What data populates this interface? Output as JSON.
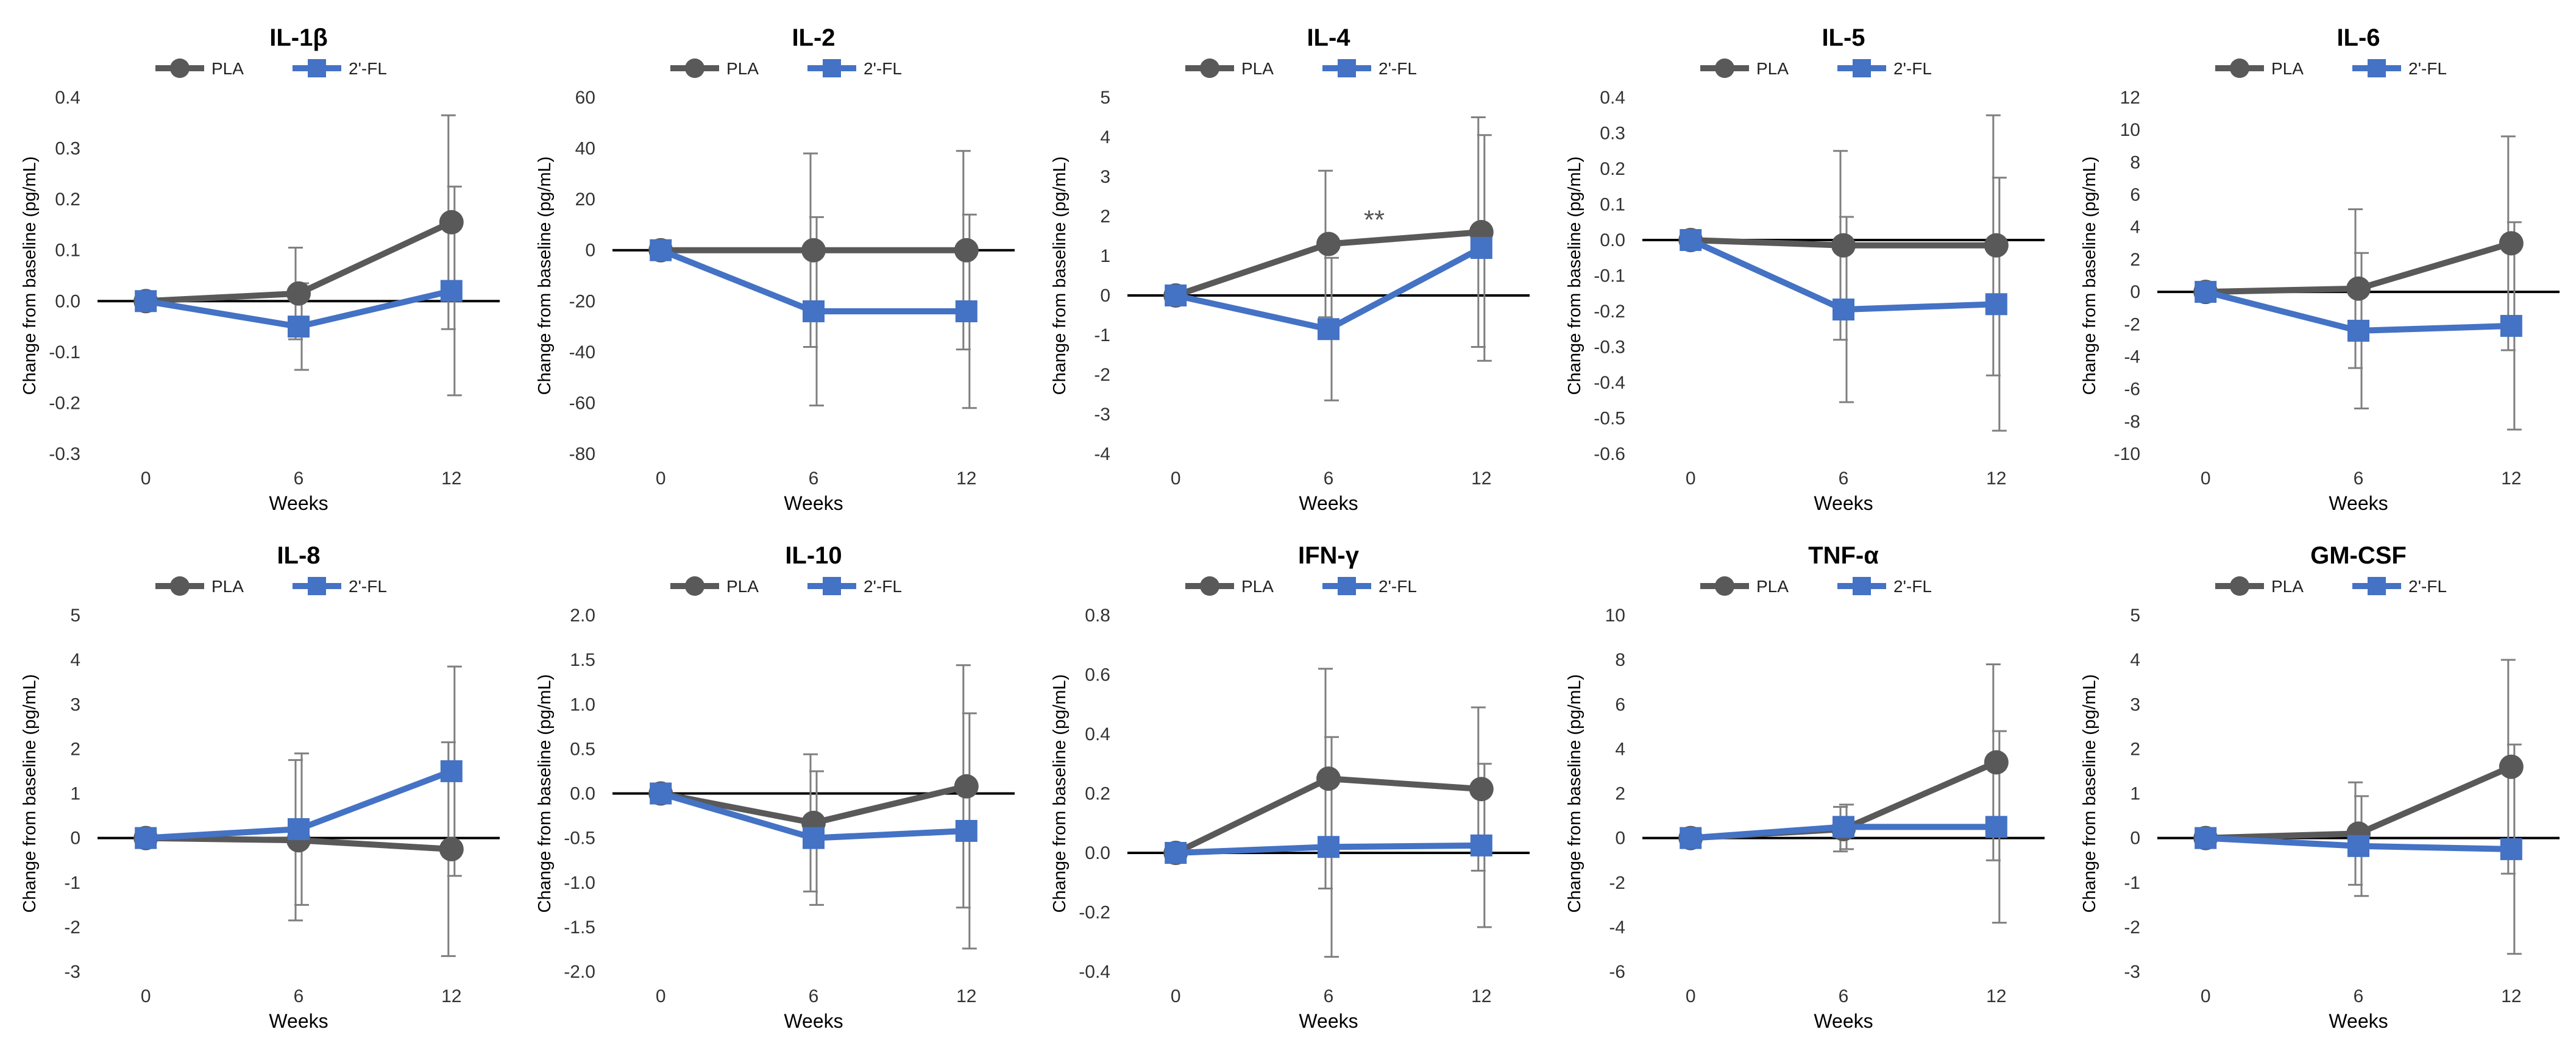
{
  "figure": {
    "xlabel": "Weeks",
    "ylabel": "Change from baseline (pg/mL)"
  },
  "legend": {
    "pla": "PLA",
    "fl": "2'-FL"
  },
  "colors": {
    "pla": "#595959",
    "fl": "#4472C4",
    "err": "#7f7f7f",
    "zero": "#000000"
  },
  "chart_data": [
    {
      "type": "line",
      "title": "IL-1β",
      "categories": [
        "0",
        "6",
        "12"
      ],
      "ylim": [
        -0.3,
        0.4
      ],
      "yticks": [
        "0.4",
        "0.3",
        "0.2",
        "0.1",
        "0.0",
        "-0.1",
        "-0.2",
        "-0.3"
      ],
      "series": [
        {
          "name": "PLA",
          "values": [
            0.0,
            0.015,
            0.155
          ],
          "err": [
            0.0,
            0.09,
            0.21
          ]
        },
        {
          "name": "2'-FL",
          "values": [
            0.0,
            -0.05,
            0.02
          ],
          "err": [
            0.0,
            0.085,
            0.205
          ]
        }
      ],
      "annotations": []
    },
    {
      "type": "line",
      "title": "IL-2",
      "categories": [
        "0",
        "6",
        "12"
      ],
      "ylim": [
        -80,
        60
      ],
      "yticks": [
        "60",
        "40",
        "20",
        "0",
        "-20",
        "-40",
        "-60",
        "-80"
      ],
      "series": [
        {
          "name": "PLA",
          "values": [
            0,
            0,
            0
          ],
          "err": [
            0,
            38,
            39
          ]
        },
        {
          "name": "2'-FL",
          "values": [
            0,
            -24,
            -24
          ],
          "err": [
            0,
            37,
            38
          ]
        }
      ],
      "annotations": []
    },
    {
      "type": "line",
      "title": "IL-4",
      "categories": [
        "0",
        "6",
        "12"
      ],
      "ylim": [
        -4,
        5
      ],
      "yticks": [
        "5",
        "4",
        "3",
        "2",
        "1",
        "0",
        "-1",
        "-2",
        "-3",
        "-4"
      ],
      "series": [
        {
          "name": "PLA",
          "values": [
            0,
            1.3,
            1.6
          ],
          "err": [
            0,
            1.85,
            2.9
          ]
        },
        {
          "name": "2'-FL",
          "values": [
            0,
            -0.85,
            1.2
          ],
          "err": [
            0,
            1.8,
            2.85
          ]
        }
      ],
      "annotations": [
        {
          "x": "6",
          "text": "**"
        }
      ]
    },
    {
      "type": "line",
      "title": "IL-5",
      "categories": [
        "0",
        "6",
        "12"
      ],
      "ylim": [
        -0.6,
        0.4
      ],
      "yticks": [
        "0.4",
        "0.3",
        "0.2",
        "0.1",
        "0.0",
        "-0.1",
        "-0.2",
        "-0.3",
        "-0.4",
        "-0.5",
        "-0.6"
      ],
      "series": [
        {
          "name": "PLA",
          "values": [
            0.0,
            -0.015,
            -0.015
          ],
          "err": [
            0.0,
            0.265,
            0.365
          ]
        },
        {
          "name": "2'-FL",
          "values": [
            0.0,
            -0.195,
            -0.18
          ],
          "err": [
            0.0,
            0.26,
            0.355
          ]
        }
      ],
      "annotations": []
    },
    {
      "type": "line",
      "title": "IL-6",
      "categories": [
        "0",
        "6",
        "12"
      ],
      "ylim": [
        -10,
        12
      ],
      "yticks": [
        "12",
        "10",
        "8",
        "6",
        "4",
        "2",
        "0",
        "-2",
        "-4",
        "-6",
        "-8",
        "-10"
      ],
      "series": [
        {
          "name": "PLA",
          "values": [
            0,
            0.2,
            3.0
          ],
          "err": [
            0,
            4.9,
            6.6
          ]
        },
        {
          "name": "2'-FL",
          "values": [
            0,
            -2.4,
            -2.1
          ],
          "err": [
            0,
            4.8,
            6.4
          ]
        }
      ],
      "annotations": []
    },
    {
      "type": "line",
      "title": "IL-8",
      "categories": [
        "0",
        "6",
        "12"
      ],
      "ylim": [
        -3,
        5
      ],
      "yticks": [
        "5",
        "4",
        "3",
        "2",
        "1",
        "0",
        "-1",
        "-2",
        "-3"
      ],
      "series": [
        {
          "name": "PLA",
          "values": [
            0,
            -0.05,
            -0.25
          ],
          "err": [
            0,
            1.8,
            2.4
          ]
        },
        {
          "name": "2'-FL",
          "values": [
            0,
            0.2,
            1.5
          ],
          "err": [
            0,
            1.7,
            2.35
          ]
        }
      ],
      "annotations": []
    },
    {
      "type": "line",
      "title": "IL-10",
      "categories": [
        "0",
        "6",
        "12"
      ],
      "ylim": [
        -2.0,
        2.0
      ],
      "yticks": [
        "2.0",
        "1.5",
        "1.0",
        "0.5",
        "0.0",
        "-0.5",
        "-1.0",
        "-1.5",
        "-2.0"
      ],
      "series": [
        {
          "name": "PLA",
          "values": [
            0.0,
            -0.33,
            0.08
          ],
          "err": [
            0.0,
            0.77,
            1.36
          ]
        },
        {
          "name": "2'-FL",
          "values": [
            0.0,
            -0.5,
            -0.42
          ],
          "err": [
            0.0,
            0.75,
            1.32
          ]
        }
      ],
      "annotations": []
    },
    {
      "type": "line",
      "title": "IFN-γ",
      "categories": [
        "0",
        "6",
        "12"
      ],
      "ylim": [
        -0.4,
        0.8
      ],
      "yticks": [
        "0.8",
        "0.6",
        "0.4",
        "0.2",
        "0.0",
        "-0.2",
        "-0.4"
      ],
      "series": [
        {
          "name": "PLA",
          "values": [
            0.0,
            0.25,
            0.215
          ],
          "err": [
            0.0,
            0.37,
            0.275
          ]
        },
        {
          "name": "2'-FL",
          "values": [
            0.0,
            0.02,
            0.025
          ],
          "err": [
            0.0,
            0.37,
            0.275
          ]
        }
      ],
      "annotations": []
    },
    {
      "type": "line",
      "title": "TNF-α",
      "categories": [
        "0",
        "6",
        "12"
      ],
      "ylim": [
        -6,
        10
      ],
      "yticks": [
        "10",
        "8",
        "6",
        "4",
        "2",
        "0",
        "-2",
        "-4",
        "-6"
      ],
      "series": [
        {
          "name": "PLA",
          "values": [
            0,
            0.4,
            3.4
          ],
          "err": [
            0,
            1.0,
            4.4
          ]
        },
        {
          "name": "2'-FL",
          "values": [
            0,
            0.5,
            0.5
          ],
          "err": [
            0,
            1.0,
            4.3
          ]
        }
      ],
      "annotations": []
    },
    {
      "type": "line",
      "title": "GM-CSF",
      "categories": [
        "0",
        "6",
        "12"
      ],
      "ylim": [
        -3,
        5
      ],
      "yticks": [
        "5",
        "4",
        "3",
        "2",
        "1",
        "0",
        "-1",
        "-2",
        "-3"
      ],
      "series": [
        {
          "name": "PLA",
          "values": [
            0,
            0.1,
            1.6
          ],
          "err": [
            0,
            1.15,
            2.4
          ]
        },
        {
          "name": "2'-FL",
          "values": [
            0,
            -0.18,
            -0.25
          ],
          "err": [
            0,
            1.12,
            2.35
          ]
        }
      ],
      "annotations": []
    }
  ]
}
